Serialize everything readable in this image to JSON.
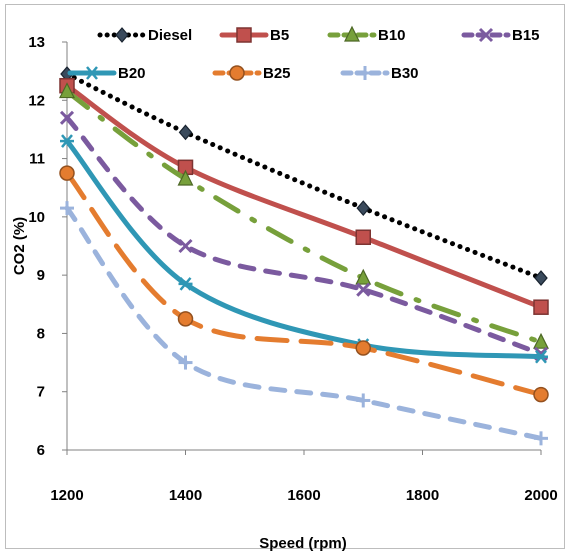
{
  "chart_data": {
    "type": "line",
    "title": "",
    "xlabel": "Speed (rpm)",
    "ylabel": "CO2 (%)",
    "x": [
      1200,
      1400,
      1700,
      2000
    ],
    "xlim": [
      1200,
      2000
    ],
    "ylim": [
      6,
      13
    ],
    "x_ticks": [
      "1200",
      "1400",
      "1600",
      "1800",
      "2000"
    ],
    "y_ticks": [
      "6",
      "7",
      "8",
      "9",
      "10",
      "11",
      "12",
      "13"
    ],
    "grid": false,
    "legend_position": "top",
    "series": [
      {
        "name": "Diesel",
        "values": [
          12.45,
          11.45,
          10.15,
          8.95
        ],
        "color": "#000000",
        "marker": "diamond",
        "line": "dotted"
      },
      {
        "name": "B5",
        "values": [
          12.25,
          10.85,
          9.65,
          8.45
        ],
        "color": "#c0504d",
        "marker": "square",
        "line": "solid"
      },
      {
        "name": "B10",
        "values": [
          12.15,
          10.65,
          8.95,
          7.85
        ],
        "color": "#77a03b",
        "marker": "triangle",
        "line": "dashdot"
      },
      {
        "name": "B15",
        "values": [
          11.7,
          9.5,
          8.75,
          7.65
        ],
        "color": "#7b5a9f",
        "marker": "x",
        "line": "dashed"
      },
      {
        "name": "B20",
        "values": [
          11.3,
          8.85,
          7.8,
          7.6
        ],
        "color": "#2f97b5",
        "marker": "asterisk",
        "line": "solid"
      },
      {
        "name": "B25",
        "values": [
          10.75,
          8.25,
          7.75,
          6.95
        ],
        "color": "#e47c2f",
        "marker": "circle",
        "line": "longdash"
      },
      {
        "name": "B30",
        "values": [
          10.15,
          7.5,
          6.85,
          6.2
        ],
        "color": "#9bb3dc",
        "marker": "plus",
        "line": "dashed"
      }
    ]
  }
}
